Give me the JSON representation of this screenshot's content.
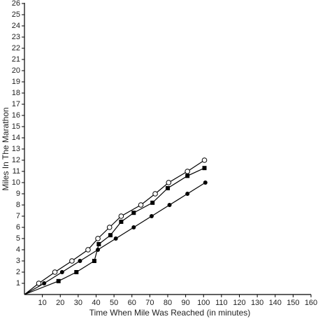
{
  "chart_data": {
    "type": "line",
    "x_label": "Time When Mile Was Reached (in minutes)",
    "y_label": "Miles In The Marathon",
    "xlim": [
      0,
      160
    ],
    "ylim": [
      0,
      26
    ],
    "xticks": [
      10,
      20,
      30,
      40,
      50,
      60,
      70,
      80,
      90,
      100,
      110,
      120,
      130,
      140,
      150,
      160
    ],
    "yticks": [
      1,
      2,
      3,
      4,
      5,
      6,
      7,
      8,
      9,
      10,
      11,
      12,
      13,
      14,
      15,
      16,
      17,
      18,
      19,
      20,
      21,
      22,
      23,
      24,
      25,
      26
    ],
    "grid": false,
    "series": [
      {
        "color": "#000000",
        "marker": "open-circle",
        "x": [
          0,
          8,
          17,
          26.5,
          35.5,
          41,
          47.5,
          54,
          65,
          73,
          80.5,
          91,
          100.5
        ],
        "values": [
          0,
          1,
          2,
          3,
          4,
          5,
          6,
          7,
          8,
          9,
          10,
          11,
          12
        ]
      },
      {
        "color": "#000000",
        "marker": "square",
        "x": [
          0,
          19,
          29,
          39,
          41.5,
          48,
          54,
          61,
          71.5,
          80,
          91,
          100.5
        ],
        "values": [
          0,
          1.2,
          2,
          3,
          4.5,
          5.3,
          6.5,
          7.3,
          8.2,
          9.5,
          10.6,
          11.3
        ]
      },
      {
        "color": "#000000",
        "marker": "filled-circle",
        "x": [
          0,
          11,
          21,
          31,
          41,
          51,
          61,
          71,
          81,
          91,
          101
        ],
        "values": [
          0,
          1,
          2,
          3,
          4,
          5,
          6,
          7,
          8,
          9,
          10
        ]
      }
    ]
  }
}
